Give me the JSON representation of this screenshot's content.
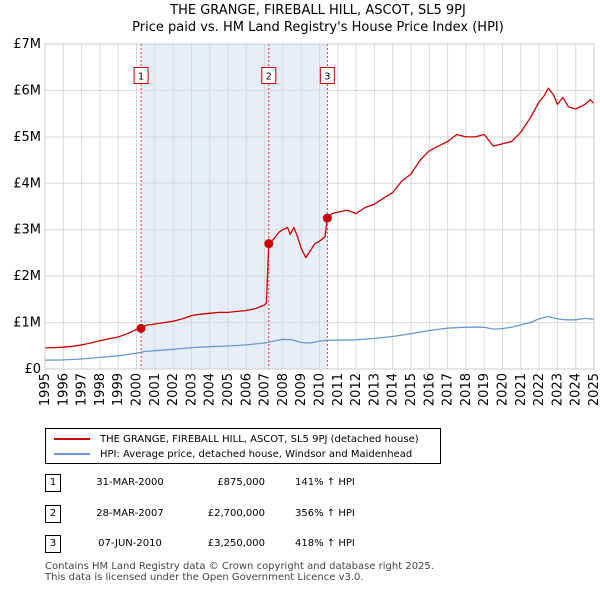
{
  "chart_data": {
    "type": "line",
    "title": "THE GRANGE, FIREBALL HILL, ASCOT, SL5 9PJ",
    "subtitle": "Price paid vs. HM Land Registry's House Price Index (HPI)",
    "xlabel": "",
    "ylabel": "",
    "xlim": [
      1995,
      2025
    ],
    "ylim": [
      0,
      7000000
    ],
    "x_ticks": [
      "1995",
      "1996",
      "1997",
      "1998",
      "1999",
      "2000",
      "2001",
      "2002",
      "2003",
      "2004",
      "2005",
      "2006",
      "2007",
      "2008",
      "2009",
      "2010",
      "2011",
      "2012",
      "2013",
      "2014",
      "2015",
      "2016",
      "2017",
      "2018",
      "2019",
      "2020",
      "2021",
      "2022",
      "2023",
      "2024",
      "2025"
    ],
    "y_ticks": [
      {
        "value": 0,
        "label": "£0"
      },
      {
        "value": 1000000,
        "label": "£1M"
      },
      {
        "value": 2000000,
        "label": "£2M"
      },
      {
        "value": 3000000,
        "label": "£3M"
      },
      {
        "value": 4000000,
        "label": "£4M"
      },
      {
        "value": 5000000,
        "label": "£5M"
      },
      {
        "value": 6000000,
        "label": "£6M"
      },
      {
        "value": 7000000,
        "label": "£7M"
      }
    ],
    "grid": true,
    "series": [
      {
        "name": "THE GRANGE, FIREBALL HILL, ASCOT, SL5 9PJ (detached house)",
        "color": "#cc0000",
        "points": [
          [
            1995.0,
            455000
          ],
          [
            1995.5,
            462000
          ],
          [
            1996.0,
            470000
          ],
          [
            1996.5,
            490000
          ],
          [
            1997.0,
            520000
          ],
          [
            1997.5,
            560000
          ],
          [
            1998.0,
            610000
          ],
          [
            1998.5,
            650000
          ],
          [
            1999.0,
            690000
          ],
          [
            1999.5,
            760000
          ],
          [
            2000.0,
            850000
          ],
          [
            2000.25,
            875000
          ],
          [
            2000.5,
            940000
          ],
          [
            2001.0,
            970000
          ],
          [
            2001.5,
            1000000
          ],
          [
            2002.0,
            1030000
          ],
          [
            2002.5,
            1080000
          ],
          [
            2003.0,
            1150000
          ],
          [
            2003.5,
            1180000
          ],
          [
            2004.0,
            1200000
          ],
          [
            2004.5,
            1220000
          ],
          [
            2005.0,
            1220000
          ],
          [
            2005.5,
            1240000
          ],
          [
            2006.0,
            1260000
          ],
          [
            2006.5,
            1300000
          ],
          [
            2007.0,
            1380000
          ],
          [
            2007.1,
            1420000
          ],
          [
            2007.23,
            2700000
          ],
          [
            2007.5,
            2800000
          ],
          [
            2007.8,
            2950000
          ],
          [
            2008.0,
            3000000
          ],
          [
            2008.25,
            3050000
          ],
          [
            2008.4,
            2900000
          ],
          [
            2008.6,
            3050000
          ],
          [
            2008.8,
            2850000
          ],
          [
            2009.0,
            2600000
          ],
          [
            2009.25,
            2400000
          ],
          [
            2009.5,
            2550000
          ],
          [
            2009.75,
            2700000
          ],
          [
            2010.0,
            2750000
          ],
          [
            2010.3,
            2850000
          ],
          [
            2010.43,
            3250000
          ],
          [
            2010.7,
            3350000
          ],
          [
            2011.0,
            3380000
          ],
          [
            2011.5,
            3420000
          ],
          [
            2012.0,
            3350000
          ],
          [
            2012.5,
            3480000
          ],
          [
            2013.0,
            3550000
          ],
          [
            2013.5,
            3680000
          ],
          [
            2014.0,
            3800000
          ],
          [
            2014.5,
            4050000
          ],
          [
            2015.0,
            4200000
          ],
          [
            2015.5,
            4500000
          ],
          [
            2016.0,
            4700000
          ],
          [
            2016.5,
            4800000
          ],
          [
            2017.0,
            4900000
          ],
          [
            2017.5,
            5050000
          ],
          [
            2018.0,
            5000000
          ],
          [
            2018.5,
            5000000
          ],
          [
            2019.0,
            5050000
          ],
          [
            2019.5,
            4800000
          ],
          [
            2020.0,
            4850000
          ],
          [
            2020.5,
            4900000
          ],
          [
            2021.0,
            5100000
          ],
          [
            2021.5,
            5400000
          ],
          [
            2022.0,
            5750000
          ],
          [
            2022.3,
            5900000
          ],
          [
            2022.5,
            6050000
          ],
          [
            2022.8,
            5900000
          ],
          [
            2023.0,
            5700000
          ],
          [
            2023.3,
            5850000
          ],
          [
            2023.6,
            5650000
          ],
          [
            2024.0,
            5600000
          ],
          [
            2024.5,
            5700000
          ],
          [
            2024.8,
            5800000
          ],
          [
            2025.0,
            5720000
          ]
        ]
      },
      {
        "name": "HPI: Average price, detached house, Windsor and Maidenhead",
        "color": "#6a9acc",
        "points": [
          [
            1995.0,
            190000
          ],
          [
            1996.0,
            195000
          ],
          [
            1997.0,
            215000
          ],
          [
            1998.0,
            250000
          ],
          [
            1999.0,
            285000
          ],
          [
            2000.0,
            340000
          ],
          [
            2000.5,
            380000
          ],
          [
            2001.0,
            395000
          ],
          [
            2002.0,
            425000
          ],
          [
            2003.0,
            460000
          ],
          [
            2004.0,
            480000
          ],
          [
            2005.0,
            495000
          ],
          [
            2006.0,
            520000
          ],
          [
            2007.0,
            560000
          ],
          [
            2007.5,
            600000
          ],
          [
            2008.0,
            640000
          ],
          [
            2008.5,
            630000
          ],
          [
            2009.0,
            570000
          ],
          [
            2009.5,
            560000
          ],
          [
            2010.0,
            600000
          ],
          [
            2010.5,
            620000
          ],
          [
            2011.0,
            620000
          ],
          [
            2012.0,
            630000
          ],
          [
            2013.0,
            660000
          ],
          [
            2014.0,
            700000
          ],
          [
            2015.0,
            760000
          ],
          [
            2016.0,
            830000
          ],
          [
            2017.0,
            880000
          ],
          [
            2018.0,
            900000
          ],
          [
            2019.0,
            900000
          ],
          [
            2019.5,
            860000
          ],
          [
            2020.0,
            870000
          ],
          [
            2020.5,
            900000
          ],
          [
            2021.0,
            950000
          ],
          [
            2021.5,
            1000000
          ],
          [
            2022.0,
            1080000
          ],
          [
            2022.5,
            1130000
          ],
          [
            2023.0,
            1080000
          ],
          [
            2023.5,
            1060000
          ],
          [
            2024.0,
            1060000
          ],
          [
            2024.5,
            1090000
          ],
          [
            2025.0,
            1070000
          ]
        ]
      }
    ],
    "transactions": [
      {
        "num": "1",
        "x": 2000.25,
        "value": 875000,
        "date": "31-MAR-2000",
        "price": "£875,000",
        "hpi": "141% ↑ HPI"
      },
      {
        "num": "2",
        "x": 2007.23,
        "value": 2700000,
        "date": "28-MAR-2007",
        "price": "£2,700,000",
        "hpi": "356% ↑ HPI"
      },
      {
        "num": "3",
        "x": 2010.43,
        "value": 3250000,
        "date": "07-JUN-2010",
        "price": "£3,250,000",
        "hpi": "418% ↑ HPI"
      }
    ],
    "marker_label_value": 6300000,
    "highlight_color": "#e8eef8",
    "legend_position": "below"
  },
  "legend": {
    "items": [
      {
        "label": "THE GRANGE, FIREBALL HILL, ASCOT, SL5 9PJ (detached house)",
        "color": "#cc0000"
      },
      {
        "label": "HPI: Average price, detached house, Windsor and Maidenhead",
        "color": "#6a9acc"
      }
    ]
  },
  "table": {
    "rows": [
      {
        "num": "1",
        "date": "31-MAR-2000",
        "price": "£875,000",
        "hpi": "141% ↑ HPI"
      },
      {
        "num": "2",
        "date": "28-MAR-2007",
        "price": "£2,700,000",
        "hpi": "356% ↑ HPI"
      },
      {
        "num": "3",
        "date": "07-JUN-2010",
        "price": "£3,250,000",
        "hpi": "418% ↑ HPI"
      }
    ]
  },
  "footer": {
    "line1": "Contains HM Land Registry data © Crown copyright and database right 2025.",
    "line2": "This data is licensed under the Open Government Licence v3.0."
  }
}
